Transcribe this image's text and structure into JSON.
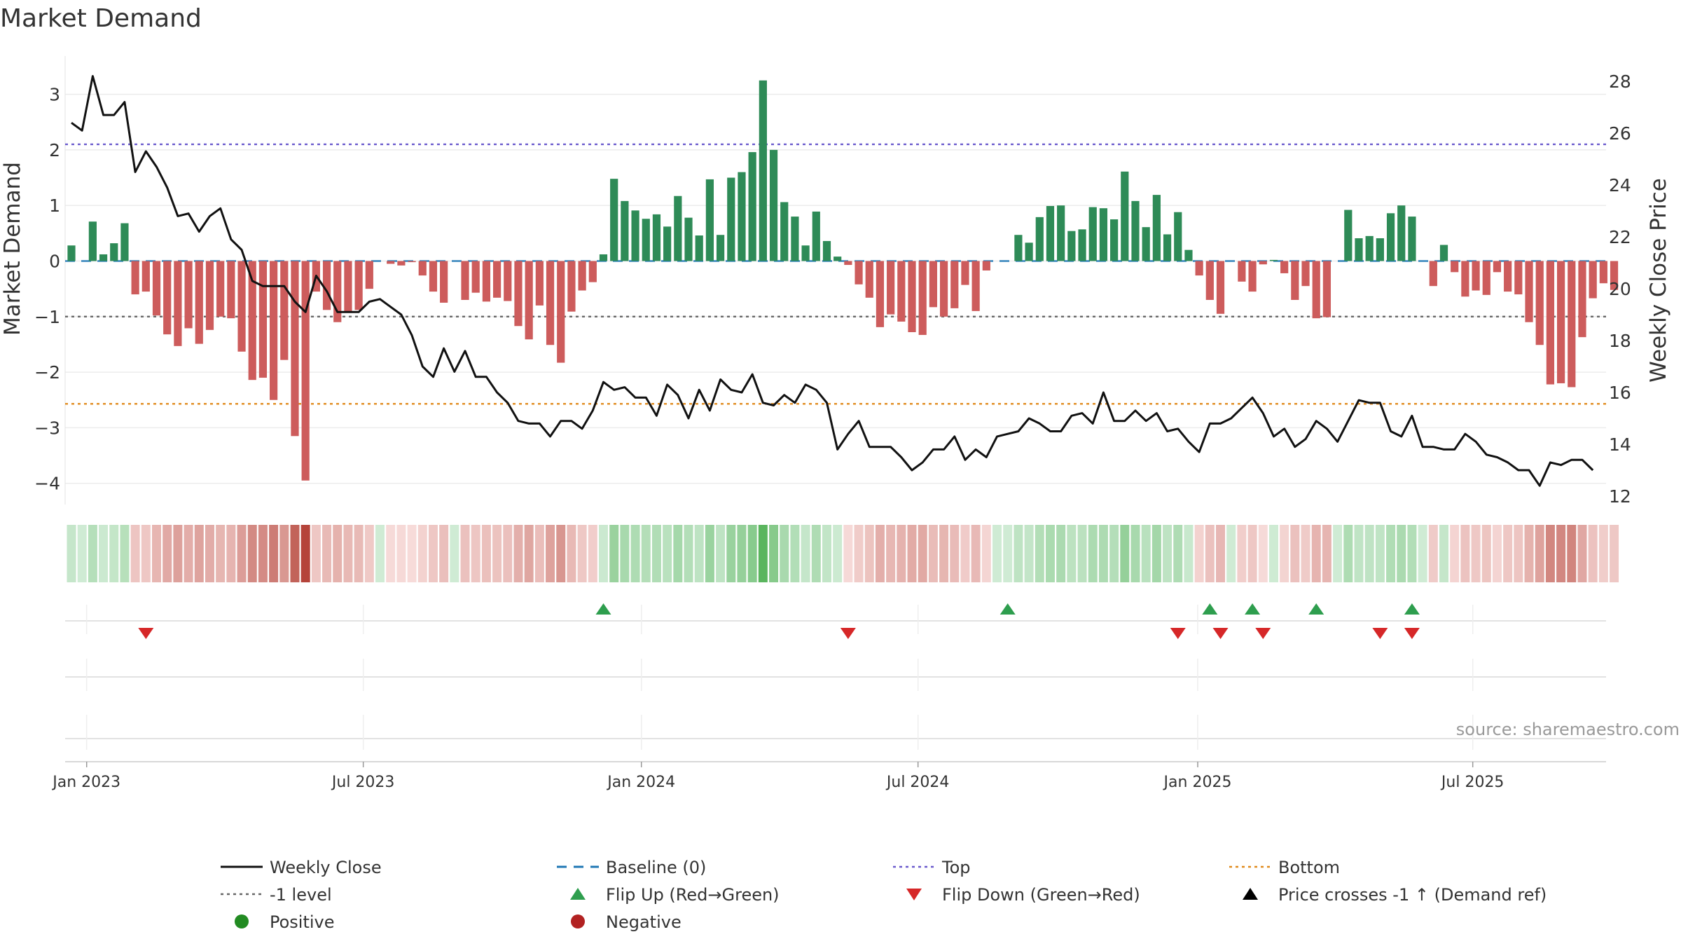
{
  "chart_data": {
    "type": "bar+line",
    "title": "Market Demand",
    "ylabel_left": "Market Demand",
    "ylabel_right": "Weekly Close Price",
    "ylim_left": [
      -4.3,
      3.5
    ],
    "ylim_right": [
      11.7,
      28.9
    ],
    "yticks_left": [
      3,
      2,
      1,
      0,
      -1,
      -2,
      -3,
      -4
    ],
    "yticks_right": [
      28,
      26,
      24,
      22,
      20,
      18,
      16,
      14,
      12
    ],
    "x_tick_labels": [
      "Jan 2023",
      "Jul 2023",
      "Jan 2024",
      "Jul 2024",
      "Jan 2025",
      "Jul 2025"
    ],
    "x_tick_weeks": [
      1.43,
      27.43,
      53.57,
      79.57,
      105.86,
      131.71
    ],
    "reference_lines": {
      "top": 2.1,
      "bottom": -2.57,
      "minus_one": -1,
      "baseline": 0
    },
    "series": [
      {
        "name": "Market Demand",
        "type": "bar",
        "values": [
          0.28,
          0.0,
          0.71,
          0.12,
          0.32,
          0.68,
          -0.6,
          -0.55,
          -0.98,
          -1.32,
          -1.53,
          -1.21,
          -1.49,
          -1.24,
          -1.0,
          -1.03,
          -1.63,
          -2.14,
          -2.1,
          -2.5,
          -1.78,
          -3.15,
          -3.95,
          -0.55,
          -0.88,
          -1.1,
          -0.92,
          -0.88,
          -0.5,
          0.0,
          -0.05,
          -0.08,
          -0.02,
          -0.26,
          -0.55,
          -0.75,
          0.0,
          -0.7,
          -0.57,
          -0.73,
          -0.66,
          -0.72,
          -1.17,
          -1.41,
          -0.8,
          -1.51,
          -1.83,
          -0.91,
          -0.53,
          -0.38,
          0.12,
          1.48,
          1.08,
          0.91,
          0.76,
          0.84,
          0.62,
          1.17,
          0.78,
          0.46,
          1.47,
          0.47,
          1.5,
          1.6,
          1.96,
          3.25,
          2.0,
          1.06,
          0.8,
          0.28,
          0.89,
          0.36,
          0.08,
          -0.07,
          -0.42,
          -0.66,
          -1.19,
          -0.96,
          -1.09,
          -1.28,
          -1.33,
          -0.83,
          -1.0,
          -0.85,
          -0.43,
          -0.9,
          -0.17,
          0.0,
          0.0,
          0.47,
          0.33,
          0.79,
          0.99,
          1.0,
          0.54,
          0.57,
          0.97,
          0.95,
          0.75,
          1.61,
          1.08,
          0.61,
          1.19,
          0.48,
          0.88,
          0.2,
          -0.26,
          -0.7,
          -0.95,
          0.0,
          -0.37,
          -0.55,
          -0.06,
          0.02,
          -0.22,
          -0.7,
          -0.45,
          -1.03,
          -1.01,
          0.0,
          0.92,
          0.41,
          0.45,
          0.41,
          0.86,
          1.0,
          0.8,
          0.0,
          -0.45,
          0.29,
          -0.2,
          -0.64,
          -0.53,
          -0.61,
          -0.2,
          -0.55,
          -0.6,
          -1.1,
          -1.51,
          -2.22,
          -2.2,
          -2.27,
          -1.37,
          -0.67,
          -0.4,
          -0.52
        ]
      },
      {
        "name": "Weekly Close",
        "type": "line",
        "axis": "right",
        "values": [
          26.4,
          26.1,
          28.2,
          26.7,
          26.7,
          27.2,
          24.5,
          25.3,
          24.7,
          23.9,
          22.8,
          22.9,
          22.2,
          22.8,
          23.1,
          21.9,
          21.5,
          20.3,
          20.1,
          20.1,
          20.1,
          19.5,
          19.1,
          20.5,
          19.9,
          19.1,
          19.1,
          19.1,
          19.5,
          19.6,
          19.3,
          19.0,
          18.2,
          17.0,
          16.6,
          17.7,
          16.8,
          17.6,
          16.6,
          16.6,
          16.0,
          15.6,
          14.9,
          14.8,
          14.8,
          14.3,
          14.9,
          14.9,
          14.6,
          15.3,
          16.4,
          16.1,
          16.2,
          15.8,
          15.8,
          15.1,
          16.3,
          15.9,
          15.0,
          16.1,
          15.3,
          16.5,
          16.1,
          16.0,
          16.7,
          15.6,
          15.5,
          15.9,
          15.6,
          16.3,
          16.1,
          15.6,
          13.8,
          14.4,
          14.9,
          13.9,
          13.9,
          13.9,
          13.5,
          13.0,
          13.3,
          13.8,
          13.8,
          14.3,
          13.4,
          13.8,
          13.5,
          14.3,
          14.4,
          14.5,
          15.0,
          14.8,
          14.5,
          14.5,
          15.1,
          15.2,
          14.8,
          16.0,
          14.9,
          14.9,
          15.3,
          14.9,
          15.2,
          14.5,
          14.6,
          14.1,
          13.7,
          14.8,
          14.8,
          15.0,
          15.4,
          15.8,
          15.2,
          14.3,
          14.6,
          13.9,
          14.2,
          14.9,
          14.6,
          14.1,
          14.9,
          15.7,
          15.6,
          15.6,
          14.5,
          14.3,
          15.1,
          13.9,
          13.9,
          13.8,
          13.8,
          14.4,
          14.1,
          13.6,
          13.5,
          13.3,
          13.0,
          13.0,
          12.4,
          13.3,
          13.2,
          13.4,
          13.4,
          13.0
        ]
      }
    ],
    "signals": {
      "flip_up_weeks": [
        50,
        88,
        107,
        111,
        117,
        126
      ],
      "flip_down_weeks": [
        7,
        73,
        104,
        108,
        112,
        123,
        126
      ]
    },
    "annotation": "source: sharemaestro.com",
    "legend": [
      {
        "label": "Weekly Close",
        "type": "line",
        "color": "#111111"
      },
      {
        "label": "Baseline (0)",
        "type": "dash",
        "color": "#1f77b4"
      },
      {
        "label": "Top",
        "type": "dot",
        "color": "#6a5acd"
      },
      {
        "label": "Bottom",
        "type": "dot",
        "color": "#e08a1c"
      },
      {
        "label": "-1 level",
        "type": "dot",
        "color": "#666666"
      },
      {
        "label": "Flip Up (Red→Green)",
        "type": "tri-up",
        "color": "#2e9e4e"
      },
      {
        "label": "Flip Down (Green→Red)",
        "type": "tri-down",
        "color": "#d62728"
      },
      {
        "label": "Price crosses -1 ↑ (Demand ref)",
        "type": "tri-up",
        "color": "#000000"
      },
      {
        "label": "Positive",
        "type": "circle",
        "color": "#228b22"
      },
      {
        "label": "Negative",
        "type": "circle",
        "color": "#b22222"
      }
    ],
    "legend_position": "bottom"
  },
  "colors": {
    "positive": "#2e8b57",
    "negative": "#cd5c5c",
    "price": "#111111"
  }
}
